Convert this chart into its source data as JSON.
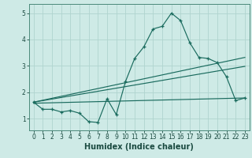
{
  "title": "",
  "xlabel": "Humidex (Indice chaleur)",
  "bg_color": "#ceeae6",
  "grid_color": "#b0d4cf",
  "line_color": "#1a6b5e",
  "xlim": [
    -0.5,
    23.5
  ],
  "ylim": [
    0.55,
    5.35
  ],
  "xticks": [
    0,
    1,
    2,
    3,
    4,
    5,
    6,
    7,
    8,
    9,
    10,
    11,
    12,
    13,
    14,
    15,
    16,
    17,
    18,
    19,
    20,
    21,
    22,
    23
  ],
  "yticks": [
    1,
    2,
    3,
    4,
    5
  ],
  "main_x": [
    0,
    1,
    2,
    3,
    4,
    5,
    6,
    7,
    8,
    9,
    10,
    11,
    12,
    13,
    14,
    15,
    16,
    17,
    18,
    19,
    20,
    21,
    22,
    23
  ],
  "main_y": [
    1.62,
    1.35,
    1.35,
    1.25,
    1.3,
    1.2,
    0.88,
    0.85,
    1.75,
    1.15,
    2.4,
    3.28,
    3.72,
    4.4,
    4.5,
    5.0,
    4.72,
    3.88,
    3.32,
    3.28,
    3.12,
    2.58,
    1.68,
    1.78
  ],
  "trend1_x": [
    0,
    23
  ],
  "trend1_y": [
    1.62,
    3.32
  ],
  "trend2_x": [
    0,
    23
  ],
  "trend2_y": [
    1.62,
    2.98
  ],
  "trend3_x": [
    0,
    23
  ],
  "trend3_y": [
    1.58,
    1.78
  ],
  "tick_fontsize": 5.5,
  "xlabel_fontsize": 7.0
}
